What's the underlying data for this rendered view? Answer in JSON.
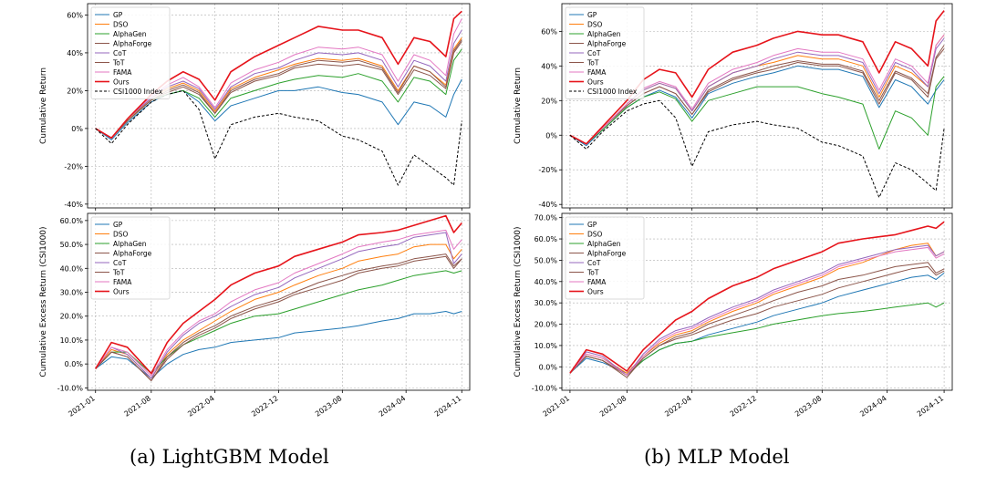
{
  "captions": {
    "left": "(a) LightGBM Model",
    "right": "(b) MLP Model"
  },
  "series_colors": {
    "GP": "#1f77b4",
    "DSO": "#ff7f0e",
    "AlphaGen": "#2ca02c",
    "AlphaForge": "#8c564b",
    "CoT": "#9467bd",
    "ToT": "#8c564b",
    "FAMA": "#e377c2",
    "Ours": "#e6141b",
    "CSI1000 Index": "#000000"
  },
  "x_tick_labels": [
    "2021-01",
    "2021-08",
    "2022-04",
    "2022-12",
    "2023-08",
    "2024-04",
    "2024-11"
  ],
  "chart_data": [
    {
      "type": "line",
      "panel": "LightGBM-cumulative",
      "ylabel": "Cumulative Return",
      "ylim": [
        -42,
        66
      ],
      "yticks": [
        -40,
        -20,
        0,
        20,
        40,
        60
      ],
      "ytick_labels": [
        "-40%",
        "-20%",
        "0%",
        "20%",
        "40%",
        "60%"
      ],
      "grid": true,
      "legend_position": "top-left",
      "x": [
        "2021-01",
        "2021-03",
        "2021-05",
        "2021-08",
        "2021-10",
        "2021-12",
        "2022-02",
        "2022-04",
        "2022-06",
        "2022-09",
        "2022-12",
        "2023-02",
        "2023-05",
        "2023-08",
        "2023-10",
        "2024-01",
        "2024-03",
        "2024-05",
        "2024-07",
        "2024-09",
        "2024-10",
        "2024-11"
      ],
      "series": [
        {
          "name": "GP",
          "values": [
            0,
            -6,
            3,
            14,
            18,
            20,
            14,
            4,
            12,
            16,
            20,
            20,
            22,
            19,
            18,
            14,
            2,
            14,
            12,
            6,
            18,
            26
          ]
        },
        {
          "name": "DSO",
          "values": [
            0,
            -5,
            4,
            16,
            21,
            24,
            20,
            9,
            21,
            27,
            31,
            34,
            37,
            36,
            37,
            33,
            20,
            33,
            30,
            23,
            42,
            48
          ]
        },
        {
          "name": "AlphaGen",
          "values": [
            0,
            -5,
            4,
            15,
            18,
            20,
            16,
            6,
            16,
            20,
            24,
            26,
            28,
            27,
            29,
            25,
            14,
            27,
            25,
            18,
            36,
            42
          ]
        },
        {
          "name": "AlphaForge",
          "values": [
            0,
            -5,
            4,
            15,
            19,
            22,
            18,
            8,
            19,
            25,
            28,
            32,
            34,
            33,
            34,
            31,
            18,
            31,
            28,
            21,
            40,
            46
          ]
        },
        {
          "name": "CoT",
          "values": [
            0,
            -5,
            5,
            16,
            22,
            25,
            21,
            10,
            22,
            29,
            32,
            36,
            40,
            39,
            40,
            36,
            22,
            36,
            33,
            25,
            45,
            52
          ]
        },
        {
          "name": "ToT",
          "values": [
            0,
            -5,
            4,
            15,
            20,
            23,
            19,
            8,
            20,
            26,
            29,
            33,
            36,
            35,
            36,
            32,
            19,
            33,
            30,
            22,
            41,
            47
          ]
        },
        {
          "name": "FAMA",
          "values": [
            0,
            -5,
            5,
            17,
            23,
            27,
            22,
            11,
            24,
            31,
            35,
            39,
            43,
            42,
            43,
            39,
            25,
            39,
            36,
            28,
            50,
            58
          ]
        },
        {
          "name": "Ours",
          "values": [
            0,
            -5,
            5,
            18,
            25,
            30,
            26,
            15,
            30,
            38,
            44,
            48,
            54,
            52,
            52,
            48,
            34,
            48,
            46,
            38,
            58,
            62
          ]
        },
        {
          "name": "CSI1000 Index",
          "values": [
            0,
            -8,
            2,
            14,
            18,
            20,
            10,
            -16,
            2,
            6,
            8,
            6,
            4,
            -4,
            -6,
            -12,
            -30,
            -14,
            -20,
            -26,
            -30,
            4
          ]
        }
      ]
    },
    {
      "type": "line",
      "panel": "LightGBM-excess",
      "ylabel": "Cumulative Excess Return (CSI1000)",
      "ylim": [
        -11,
        63
      ],
      "yticks": [
        -10,
        0,
        10,
        20,
        30,
        40,
        50,
        60
      ],
      "ytick_labels": [
        "-10.0%",
        "0.0%",
        "10.0%",
        "20.0%",
        "30.0%",
        "40.0%",
        "50.0%",
        "60.0%"
      ],
      "grid": true,
      "legend_position": "top-left",
      "x": [
        "2021-01",
        "2021-03",
        "2021-05",
        "2021-08",
        "2021-10",
        "2021-12",
        "2022-02",
        "2022-04",
        "2022-06",
        "2022-09",
        "2022-12",
        "2023-02",
        "2023-05",
        "2023-08",
        "2023-10",
        "2024-01",
        "2024-03",
        "2024-05",
        "2024-07",
        "2024-09",
        "2024-10",
        "2024-11"
      ],
      "series": [
        {
          "name": "GP",
          "values": [
            -2,
            3,
            2,
            -6,
            0,
            4,
            6,
            7,
            9,
            10,
            11,
            13,
            14,
            15,
            16,
            18,
            19,
            21,
            21,
            22,
            21,
            22
          ]
        },
        {
          "name": "DSO",
          "values": [
            -2,
            6,
            4,
            -6,
            4,
            10,
            14,
            18,
            22,
            27,
            30,
            33,
            37,
            40,
            43,
            45,
            46,
            49,
            50,
            50,
            44,
            48
          ]
        },
        {
          "name": "AlphaGen",
          "values": [
            -2,
            5,
            5,
            -4,
            3,
            8,
            11,
            14,
            17,
            20,
            21,
            23,
            26,
            29,
            31,
            33,
            35,
            37,
            38,
            39,
            38,
            39
          ]
        },
        {
          "name": "AlphaForge",
          "values": [
            -2,
            5,
            3,
            -7,
            2,
            8,
            12,
            15,
            19,
            23,
            26,
            29,
            32,
            35,
            38,
            40,
            41,
            43,
            44,
            45,
            40,
            44
          ]
        },
        {
          "name": "CoT",
          "values": [
            -2,
            7,
            4,
            -6,
            5,
            12,
            17,
            20,
            24,
            29,
            32,
            36,
            40,
            44,
            47,
            49,
            50,
            53,
            54,
            55,
            42,
            46
          ]
        },
        {
          "name": "ToT",
          "values": [
            -2,
            5,
            3,
            -7,
            3,
            9,
            13,
            16,
            20,
            24,
            27,
            30,
            34,
            37,
            39,
            41,
            42,
            44,
            45,
            46,
            41,
            44
          ]
        },
        {
          "name": "FAMA",
          "values": [
            -2,
            7,
            5,
            -5,
            6,
            13,
            18,
            21,
            26,
            31,
            34,
            38,
            42,
            46,
            49,
            51,
            52,
            54,
            55,
            56,
            48,
            52
          ]
        },
        {
          "name": "Ours",
          "values": [
            -2,
            9,
            7,
            -4,
            9,
            17,
            22,
            27,
            33,
            38,
            41,
            45,
            48,
            51,
            54,
            55,
            56,
            58,
            60,
            62,
            55,
            59
          ]
        }
      ]
    },
    {
      "type": "line",
      "panel": "MLP-cumulative",
      "ylabel": "Cumulative Return",
      "ylim": [
        -42,
        76
      ],
      "yticks": [
        -40,
        -20,
        0,
        20,
        40,
        60
      ],
      "ytick_labels": [
        "-40%",
        "-20%",
        "0%",
        "20%",
        "40%",
        "60%"
      ],
      "grid": true,
      "legend_position": "top-left",
      "x": [
        "2021-01",
        "2021-03",
        "2021-05",
        "2021-08",
        "2021-10",
        "2021-12",
        "2022-02",
        "2022-04",
        "2022-06",
        "2022-09",
        "2022-12",
        "2023-02",
        "2023-05",
        "2023-08",
        "2023-10",
        "2024-01",
        "2024-03",
        "2024-05",
        "2024-07",
        "2024-09",
        "2024-10",
        "2024-11"
      ],
      "series": [
        {
          "name": "GP",
          "values": [
            0,
            -6,
            3,
            16,
            22,
            26,
            22,
            10,
            24,
            30,
            34,
            36,
            40,
            38,
            38,
            34,
            16,
            32,
            28,
            18,
            26,
            32
          ]
        },
        {
          "name": "DSO",
          "values": [
            0,
            -5,
            4,
            18,
            26,
            30,
            27,
            14,
            28,
            36,
            40,
            42,
            46,
            44,
            44,
            40,
            22,
            40,
            36,
            28,
            52,
            58
          ]
        },
        {
          "name": "AlphaGen",
          "values": [
            0,
            -5,
            3,
            16,
            22,
            25,
            21,
            8,
            20,
            24,
            28,
            28,
            28,
            24,
            22,
            18,
            -8,
            14,
            10,
            0,
            28,
            34
          ]
        },
        {
          "name": "AlphaForge",
          "values": [
            0,
            -5,
            4,
            17,
            24,
            28,
            24,
            12,
            25,
            32,
            36,
            38,
            42,
            40,
            40,
            36,
            18,
            36,
            32,
            22,
            44,
            50
          ]
        },
        {
          "name": "CoT",
          "values": [
            0,
            -5,
            4,
            18,
            26,
            30,
            27,
            14,
            28,
            36,
            40,
            44,
            48,
            46,
            46,
            42,
            24,
            42,
            38,
            28,
            50,
            56
          ]
        },
        {
          "name": "ToT",
          "values": [
            0,
            -5,
            4,
            17,
            24,
            28,
            24,
            12,
            26,
            33,
            37,
            40,
            43,
            41,
            41,
            37,
            20,
            37,
            33,
            24,
            45,
            52
          ]
        },
        {
          "name": "FAMA",
          "values": [
            0,
            -5,
            4,
            18,
            27,
            31,
            28,
            15,
            30,
            38,
            42,
            46,
            50,
            48,
            48,
            44,
            26,
            44,
            40,
            30,
            52,
            58
          ]
        },
        {
          "name": "Ours",
          "values": [
            0,
            -5,
            5,
            20,
            32,
            38,
            36,
            22,
            38,
            48,
            52,
            56,
            60,
            58,
            58,
            54,
            36,
            54,
            50,
            40,
            66,
            72
          ]
        },
        {
          "name": "CSI1000 Index",
          "values": [
            0,
            -8,
            2,
            14,
            18,
            20,
            10,
            -18,
            2,
            6,
            8,
            6,
            4,
            -4,
            -6,
            -12,
            -36,
            -16,
            -20,
            -28,
            -32,
            4
          ]
        }
      ]
    },
    {
      "type": "line",
      "panel": "MLP-excess",
      "ylabel": "Cumulative Excess Return (CSI1000)",
      "ylim": [
        -11,
        72
      ],
      "yticks": [
        -10,
        0,
        10,
        20,
        30,
        40,
        50,
        60,
        70
      ],
      "ytick_labels": [
        "-10.0%",
        "0.0%",
        "10.0%",
        "20.0%",
        "30.0%",
        "40.0%",
        "50.0%",
        "60.0%",
        "70.0%"
      ],
      "grid": true,
      "legend_position": "top-left",
      "x": [
        "2021-01",
        "2021-03",
        "2021-05",
        "2021-08",
        "2021-10",
        "2021-12",
        "2022-02",
        "2022-04",
        "2022-06",
        "2022-09",
        "2022-12",
        "2023-02",
        "2023-05",
        "2023-08",
        "2023-10",
        "2024-01",
        "2024-03",
        "2024-05",
        "2024-07",
        "2024-09",
        "2024-10",
        "2024-11"
      ],
      "series": [
        {
          "name": "GP",
          "values": [
            -3,
            4,
            2,
            -3,
            3,
            8,
            11,
            12,
            15,
            18,
            21,
            24,
            27,
            30,
            33,
            36,
            38,
            40,
            42,
            43,
            41,
            44
          ]
        },
        {
          "name": "DSO",
          "values": [
            -3,
            6,
            4,
            -3,
            5,
            11,
            15,
            17,
            21,
            26,
            30,
            34,
            38,
            42,
            46,
            49,
            52,
            55,
            57,
            58,
            52,
            54
          ]
        },
        {
          "name": "AlphaGen",
          "values": [
            -3,
            5,
            3,
            -4,
            3,
            8,
            11,
            12,
            14,
            16,
            18,
            20,
            22,
            24,
            25,
            26,
            27,
            28,
            29,
            30,
            28,
            30
          ]
        },
        {
          "name": "AlphaForge",
          "values": [
            -3,
            5,
            3,
            -4,
            4,
            10,
            13,
            15,
            18,
            22,
            25,
            28,
            31,
            34,
            37,
            40,
            42,
            44,
            46,
            47,
            43,
            45
          ]
        },
        {
          "name": "CoT",
          "values": [
            -3,
            7,
            5,
            -4,
            6,
            13,
            17,
            19,
            23,
            28,
            32,
            36,
            40,
            44,
            48,
            51,
            53,
            55,
            56,
            57,
            52,
            54
          ]
        },
        {
          "name": "ToT",
          "values": [
            -3,
            5,
            3,
            -5,
            4,
            10,
            14,
            16,
            20,
            24,
            28,
            31,
            35,
            38,
            41,
            43,
            45,
            47,
            48,
            49,
            44,
            46
          ]
        },
        {
          "name": "FAMA",
          "values": [
            -3,
            6,
            4,
            -4,
            5,
            12,
            16,
            18,
            22,
            27,
            31,
            35,
            39,
            43,
            47,
            50,
            52,
            54,
            55,
            56,
            51,
            53
          ]
        },
        {
          "name": "Ours",
          "values": [
            -3,
            8,
            6,
            -2,
            8,
            15,
            22,
            26,
            32,
            38,
            42,
            46,
            50,
            54,
            58,
            60,
            61,
            62,
            64,
            66,
            65,
            68
          ]
        }
      ]
    }
  ]
}
